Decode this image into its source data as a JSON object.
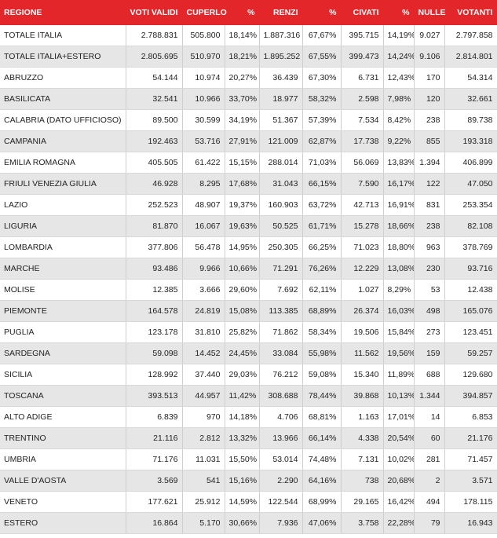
{
  "table": {
    "headers": [
      "REGIONE",
      "VOTI VALIDI",
      "CUPERLO",
      "%",
      "RENZI",
      "%",
      "CIVATI",
      "%",
      "NULLE",
      "VOTANTI"
    ],
    "rows": [
      [
        "TOTALE ITALIA",
        "2.788.831",
        "505.800",
        "18,14%",
        "1.887.316",
        "67,67%",
        "395.715",
        "14,19%",
        "9.027",
        "2.797.858"
      ],
      [
        "TOTALE ITALIA+ESTERO",
        "2.805.695",
        "510.970",
        "18,21%",
        "1.895.252",
        "67,55%",
        "399.473",
        "14,24%",
        "9.106",
        "2.814.801"
      ],
      [
        "ABRUZZO",
        "54.144",
        "10.974",
        "20,27%",
        "36.439",
        "67,30%",
        "6.731",
        "12,43%",
        "170",
        "54.314"
      ],
      [
        "BASILICATA",
        "32.541",
        "10.966",
        "33,70%",
        "18.977",
        "58,32%",
        "2.598",
        "7,98%",
        "120",
        "32.661"
      ],
      [
        "CALABRIA (DATO UFFICIOSO)",
        "89.500",
        "30.599",
        "34,19%",
        "51.367",
        "57,39%",
        "7.534",
        "8,42%",
        "238",
        "89.738"
      ],
      [
        "CAMPANIA",
        "192.463",
        "53.716",
        "27,91%",
        "121.009",
        "62,87%",
        "17.738",
        "9,22%",
        "855",
        "193.318"
      ],
      [
        "EMILIA ROMAGNA",
        "405.505",
        "61.422",
        "15,15%",
        "288.014",
        "71,03%",
        "56.069",
        "13,83%",
        "1.394",
        "406.899"
      ],
      [
        "FRIULI VENEZIA GIULIA",
        "46.928",
        "8.295",
        "17,68%",
        "31.043",
        "66,15%",
        "7.590",
        "16,17%",
        "122",
        "47.050"
      ],
      [
        "LAZIO",
        "252.523",
        "48.907",
        "19,37%",
        "160.903",
        "63,72%",
        "42.713",
        "16,91%",
        "831",
        "253.354"
      ],
      [
        "LIGURIA",
        "81.870",
        "16.067",
        "19,63%",
        "50.525",
        "61,71%",
        "15.278",
        "18,66%",
        "238",
        "82.108"
      ],
      [
        "LOMBARDIA",
        "377.806",
        "56.478",
        "14,95%",
        "250.305",
        "66,25%",
        "71.023",
        "18,80%",
        "963",
        "378.769"
      ],
      [
        "MARCHE",
        "93.486",
        "9.966",
        "10,66%",
        "71.291",
        "76,26%",
        "12.229",
        "13,08%",
        "230",
        "93.716"
      ],
      [
        "MOLISE",
        "12.385",
        "3.666",
        "29,60%",
        "7.692",
        "62,11%",
        "1.027",
        "8,29%",
        "53",
        "12.438"
      ],
      [
        "PIEMONTE",
        "164.578",
        "24.819",
        "15,08%",
        "113.385",
        "68,89%",
        "26.374",
        "16,03%",
        "498",
        "165.076"
      ],
      [
        "PUGLIA",
        "123.178",
        "31.810",
        "25,82%",
        "71.862",
        "58,34%",
        "19.506",
        "15,84%",
        "273",
        "123.451"
      ],
      [
        "SARDEGNA",
        "59.098",
        "14.452",
        "24,45%",
        "33.084",
        "55,98%",
        "11.562",
        "19,56%",
        "159",
        "59.257"
      ],
      [
        "SICILIA",
        "128.992",
        "37.440",
        "29,03%",
        "76.212",
        "59,08%",
        "15.340",
        "11,89%",
        "688",
        "129.680"
      ],
      [
        "TOSCANA",
        "393.513",
        "44.957",
        "11,42%",
        "308.688",
        "78,44%",
        "39.868",
        "10,13%",
        "1.344",
        "394.857"
      ],
      [
        "ALTO ADIGE",
        "6.839",
        "970",
        "14,18%",
        "4.706",
        "68,81%",
        "1.163",
        "17,01%",
        "14",
        "6.853"
      ],
      [
        "TRENTINO",
        "21.116",
        "2.812",
        "13,32%",
        "13.966",
        "66,14%",
        "4.338",
        "20,54%",
        "60",
        "21.176"
      ],
      [
        "UMBRIA",
        "71.176",
        "11.031",
        "15,50%",
        "53.014",
        "74,48%",
        "7.131",
        "10,02%",
        "281",
        "71.457"
      ],
      [
        "VALLE D'AOSTA",
        "3.569",
        "541",
        "15,16%",
        "2.290",
        "64,16%",
        "738",
        "20,68%",
        "2",
        "3.571"
      ],
      [
        "VENETO",
        "177.621",
        "25.912",
        "14,59%",
        "122.544",
        "68,99%",
        "29.165",
        "16,42%",
        "494",
        "178.115"
      ],
      [
        "ESTERO",
        "16.864",
        "5.170",
        "30,66%",
        "7.936",
        "47,06%",
        "3.758",
        "22,28%",
        "79",
        "16.943"
      ]
    ]
  }
}
